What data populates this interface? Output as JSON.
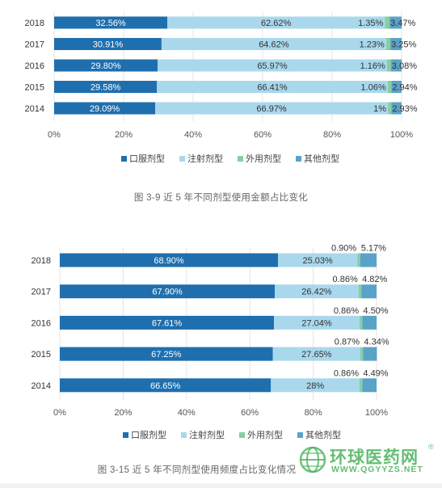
{
  "chart_data": [
    {
      "type": "bar",
      "stacked": "percent",
      "orientation": "horizontal",
      "categories": [
        "2018",
        "2017",
        "2016",
        "2015",
        "2014"
      ],
      "series": [
        {
          "name": "口服剂型",
          "color": "#1f6fae",
          "values": [
            32.56,
            30.91,
            29.8,
            29.58,
            29.09
          ],
          "labels": [
            "32.56%",
            "30.91%",
            "29.80%",
            "29.58%",
            "29.09%"
          ]
        },
        {
          "name": "注射剂型",
          "color": "#a9d8ec",
          "values": [
            62.62,
            64.62,
            65.97,
            66.41,
            66.97
          ],
          "labels": [
            "62.62%",
            "64.62%",
            "65.97%",
            "66.41%",
            "66.97%"
          ]
        },
        {
          "name": "外用剂型",
          "color": "#86cfa0",
          "values": [
            1.35,
            1.23,
            1.16,
            1.06,
            1.0
          ],
          "labels": [
            "1.35%",
            "1.23%",
            "1.16%",
            "1.06%",
            "1%"
          ]
        },
        {
          "name": "其他剂型",
          "color": "#5aa3c8",
          "values": [
            3.47,
            3.25,
            3.08,
            2.94,
            2.93
          ],
          "labels": [
            "3.47%",
            "3.25%",
            "3.08%",
            "2.94%",
            "2.93%"
          ]
        }
      ],
      "xticks": [
        "0%",
        "20%",
        "40%",
        "60%",
        "80%",
        "100%"
      ],
      "xlim": [
        0,
        100
      ],
      "legend": "bottom",
      "caption": "图 3-9  近 5 年不同剂型使用金额占比变化"
    },
    {
      "type": "bar",
      "stacked": "percent",
      "orientation": "horizontal",
      "categories": [
        "2018",
        "2017",
        "2016",
        "2015",
        "2014"
      ],
      "series": [
        {
          "name": "口服剂型",
          "color": "#1f6fae",
          "values": [
            68.9,
            67.9,
            67.61,
            67.25,
            66.65
          ],
          "labels": [
            "68.90%",
            "67.90%",
            "67.61%",
            "67.25%",
            "66.65%"
          ]
        },
        {
          "name": "注射剂型",
          "color": "#a9d8ec",
          "values": [
            25.03,
            26.42,
            27.04,
            27.65,
            28.0
          ],
          "labels": [
            "25.03%",
            "26.42%",
            "27.04%",
            "27.65%",
            "28%"
          ]
        },
        {
          "name": "外用剂型",
          "color": "#86cfa0",
          "values": [
            0.9,
            0.86,
            0.86,
            0.87,
            0.86
          ],
          "labels": [
            "0.90%",
            "0.86%",
            "0.86%",
            "0.87%",
            "0.86%"
          ]
        },
        {
          "name": "其他剂型",
          "color": "#5aa3c8",
          "values": [
            5.17,
            4.82,
            4.5,
            4.34,
            4.49
          ],
          "labels": [
            "5.17%",
            "4.82%",
            "4.50%",
            "4.34%",
            "4.49%"
          ]
        }
      ],
      "xticks": [
        "0%",
        "20%",
        "40%",
        "60%",
        "80%",
        "100%"
      ],
      "xlim": [
        0,
        100
      ],
      "legend": "bottom",
      "caption": "图 3-15  近 5 年不同剂型使用频度占比变化情况"
    }
  ],
  "watermark": {
    "name": "环球医药网",
    "reg": "®",
    "url": "WWW.QGYYZS.NET"
  }
}
